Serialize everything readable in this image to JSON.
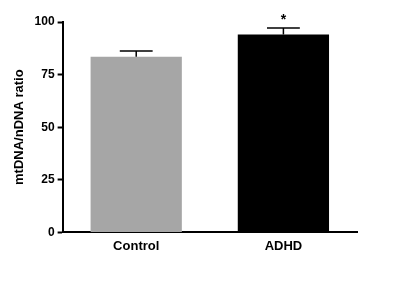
{
  "chart_data": {
    "type": "bar",
    "y_label": "mtDNA/nDNA ratio",
    "categories": [
      "Control",
      "ADHD"
    ],
    "values": [
      83.5,
      94
    ],
    "errors": [
      2.7,
      3.2
    ],
    "colors": [
      "#a6a6a6",
      "#000000"
    ],
    "ylim": [
      0,
      100
    ],
    "yticks": [
      0,
      25,
      50,
      75,
      100
    ],
    "grid": false,
    "annotations": [
      {
        "text": "*",
        "x": "ADHD"
      }
    ]
  }
}
